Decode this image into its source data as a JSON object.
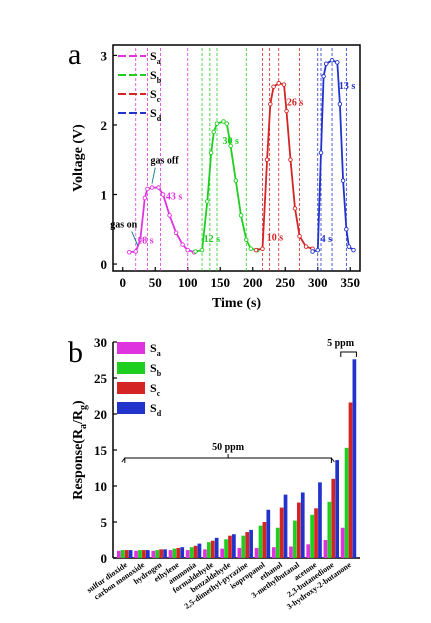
{
  "colors": {
    "Sa": "#e033e0",
    "Sb": "#1fcf1f",
    "Sc": "#d42424",
    "Sd": "#2233cc",
    "axis": "#000000",
    "annotation": "#1f7f8f"
  },
  "chart_data": [
    {
      "panel": "a",
      "type": "line",
      "xlabel": "Time (s)",
      "ylabel": "Voltage (V)",
      "xlim": [
        -15,
        365
      ],
      "ylim": [
        -0.1,
        3.15
      ],
      "xticks": [
        0,
        50,
        100,
        150,
        200,
        250,
        300,
        350
      ],
      "yticks": [
        0,
        1,
        2,
        3
      ],
      "legend_position": "top-left",
      "series": [
        {
          "name": "Sa",
          "label": "S",
          "subscript": "a",
          "points": [
            [
              10,
              0.17
            ],
            [
              20,
              0.18
            ],
            [
              27,
              0.35
            ],
            [
              34,
              0.95
            ],
            [
              38,
              1.08
            ],
            [
              45,
              1.1
            ],
            [
              55,
              1.1
            ],
            [
              62,
              1.0
            ],
            [
              72,
              0.7
            ],
            [
              82,
              0.45
            ],
            [
              92,
              0.28
            ],
            [
              100,
              0.2
            ],
            [
              110,
              0.17
            ]
          ]
        },
        {
          "name": "Sb",
          "label": "S",
          "subscript": "b",
          "points": [
            [
              112,
              0.18
            ],
            [
              122,
              0.2
            ],
            [
              130,
              0.9
            ],
            [
              136,
              1.6
            ],
            [
              140,
              1.9
            ],
            [
              145,
              2.02
            ],
            [
              155,
              2.05
            ],
            [
              160,
              2.02
            ],
            [
              166,
              1.7
            ],
            [
              174,
              1.2
            ],
            [
              182,
              0.7
            ],
            [
              190,
              0.35
            ],
            [
              197,
              0.22
            ],
            [
              207,
              0.2
            ]
          ]
        },
        {
          "name": "Sc",
          "label": "S",
          "subscript": "c",
          "points": [
            [
              205,
              0.2
            ],
            [
              215,
              0.22
            ],
            [
              222,
              1.5
            ],
            [
              227,
              2.3
            ],
            [
              232,
              2.55
            ],
            [
              240,
              2.6
            ],
            [
              248,
              2.58
            ],
            [
              252,
              2.2
            ],
            [
              258,
              1.5
            ],
            [
              265,
              0.8
            ],
            [
              272,
              0.4
            ],
            [
              282,
              0.25
            ],
            [
              292,
              0.22
            ]
          ]
        },
        {
          "name": "Sd",
          "label": "S",
          "subscript": "d",
          "points": [
            [
              292,
              0.18
            ],
            [
              300,
              0.2
            ],
            [
              305,
              1.6
            ],
            [
              309,
              2.7
            ],
            [
              313,
              2.88
            ],
            [
              322,
              2.93
            ],
            [
              330,
              2.9
            ],
            [
              334,
              2.3
            ],
            [
              339,
              1.2
            ],
            [
              344,
              0.5
            ],
            [
              348,
              0.25
            ],
            [
              355,
              0.2
            ]
          ]
        }
      ],
      "annotations": [
        {
          "text": "gas on",
          "x": 20,
          "y": 0.18
        },
        {
          "text": "gas off",
          "x": 55,
          "y": 1.1
        },
        {
          "text": "18 s",
          "series": "Sa",
          "x": 35,
          "y": 0.18
        },
        {
          "text": "43 s",
          "series": "Sa",
          "x": 82,
          "y": 0.9
        },
        {
          "text": "12 s",
          "series": "Sb",
          "x": 137,
          "y": 0.2
        },
        {
          "text": "30 s",
          "series": "Sb",
          "x": 166,
          "y": 1.7
        },
        {
          "text": "10 s",
          "series": "Sc",
          "x": 228,
          "y": 0.22
        },
        {
          "text": "26 s",
          "series": "Sc",
          "x": 262,
          "y": 2.25
        },
        {
          "text": "4 s",
          "series": "Sd",
          "x": 307,
          "y": 0.2
        },
        {
          "text": "13 s",
          "series": "Sd",
          "x": 339,
          "y": 2.6
        }
      ]
    },
    {
      "panel": "b",
      "type": "bar",
      "ylabel_parts": [
        "Response(R",
        "a",
        "/R",
        "g",
        ")"
      ],
      "ylim": [
        0,
        30
      ],
      "yticks": [
        0,
        5,
        10,
        15,
        20,
        25,
        30
      ],
      "legend_position": "top-left",
      "categories": [
        "sulfur dioxide",
        "carbon monoxide",
        "hydrogen",
        "ethylene",
        "ammonia",
        "formaldehyde",
        "benzaldehyde",
        "2,5-dimethyl-pyrazine",
        "isopropanol",
        "ethanol",
        "3-methylbutanal",
        "acetone",
        "2,3-butanedione",
        "3-hydroxy-2-butanone"
      ],
      "series": [
        {
          "name": "Sa",
          "label": "S",
          "subscript": "a",
          "values": [
            1.0,
            1.0,
            1.0,
            1.1,
            1.1,
            1.2,
            1.3,
            1.4,
            1.4,
            1.5,
            1.6,
            1.9,
            2.5,
            4.2
          ]
        },
        {
          "name": "Sb",
          "label": "S",
          "subscript": "b",
          "values": [
            1.1,
            1.1,
            1.1,
            1.3,
            1.5,
            2.2,
            2.6,
            3.1,
            4.5,
            4.2,
            5.2,
            6.0,
            7.8,
            15.3
          ]
        },
        {
          "name": "Sc",
          "label": "S",
          "subscript": "c",
          "values": [
            1.1,
            1.1,
            1.2,
            1.4,
            1.7,
            2.4,
            3.1,
            3.6,
            5.0,
            7.0,
            7.7,
            6.9,
            11.0,
            21.6
          ]
        },
        {
          "name": "Sd",
          "label": "S",
          "subscript": "d",
          "values": [
            1.1,
            1.1,
            1.2,
            1.5,
            2.0,
            2.8,
            3.3,
            3.9,
            6.7,
            8.8,
            9.1,
            10.5,
            13.6,
            27.6
          ]
        }
      ],
      "annotations": [
        {
          "text": "50 ppm",
          "categories_from": 0,
          "categories_to": 12
        },
        {
          "text": "5 ppm",
          "categories_from": 13,
          "categories_to": 13
        }
      ]
    }
  ]
}
